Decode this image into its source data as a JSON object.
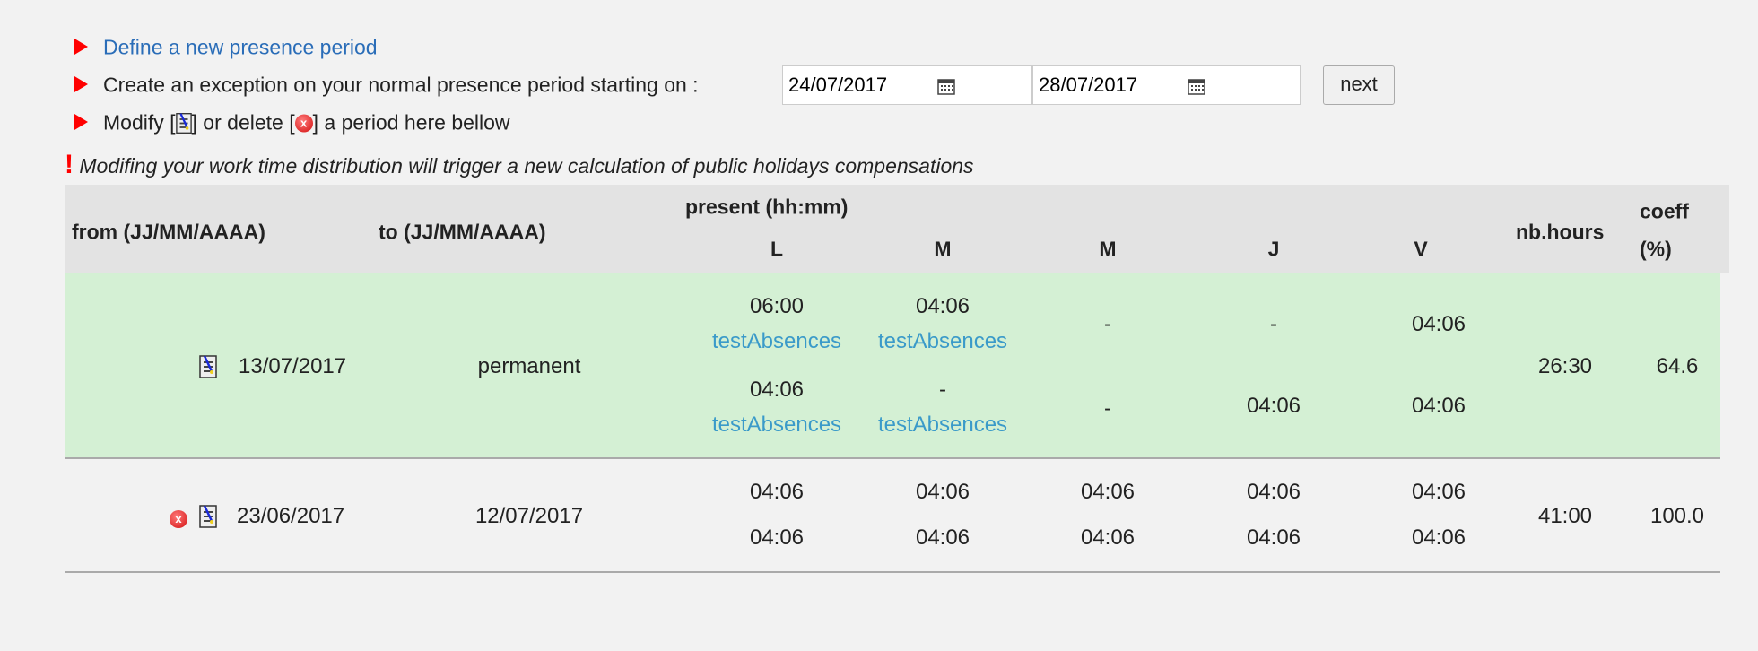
{
  "actions": {
    "define_link": "Define a new presence period",
    "exception_label": "Create an exception on your normal presence period starting on :",
    "start_date": "24/07/2017",
    "end_date": "28/07/2017",
    "next_label": "next",
    "modify_prefix": "Modify [",
    "modify_middle": "] or delete [",
    "modify_suffix": "] a period here bellow"
  },
  "warning": {
    "mark": "!",
    "text": "Modifing your work time distribution will trigger a new calculation of public holidays compensations"
  },
  "table": {
    "headers": {
      "from": "from (JJ/MM/AAAA)",
      "to": "to (JJ/MM/AAAA)",
      "present": "present (hh:mm)",
      "days": [
        "L",
        "M",
        "M",
        "J",
        "V"
      ],
      "nb_hours": "nb.hours",
      "coeff_1": "coeff",
      "coeff_2": "(%)"
    },
    "rows": [
      {
        "from": "13/07/2017",
        "to": "permanent",
        "nb_hours": "26:30",
        "coeff": "64.6",
        "deletable": false,
        "am": {
          "L": "06:00",
          "L_abs": "testAbsences",
          "M": "04:06",
          "M_abs": "testAbsences",
          "Me": "-",
          "J": "-",
          "V": "04:06"
        },
        "pm": {
          "L": "04:06",
          "L_abs": "testAbsences",
          "M": "-",
          "M_abs": "testAbsences",
          "Me": "-",
          "J": "04:06",
          "V": "04:06"
        }
      },
      {
        "from": "23/06/2017",
        "to": "12/07/2017",
        "nb_hours": "41:00",
        "coeff": "100.0",
        "deletable": true,
        "am": {
          "L": "04:06",
          "M": "04:06",
          "Me": "04:06",
          "J": "04:06",
          "V": "04:06"
        },
        "pm": {
          "L": "04:06",
          "M": "04:06",
          "Me": "04:06",
          "J": "04:06",
          "V": "04:06"
        }
      }
    ]
  },
  "colors": {
    "current_row": "#d4f0d4",
    "header": "#e3e3e3",
    "link": "#2a6db8",
    "absence_link": "#3a9ac9",
    "arrow": "#ff0000"
  }
}
